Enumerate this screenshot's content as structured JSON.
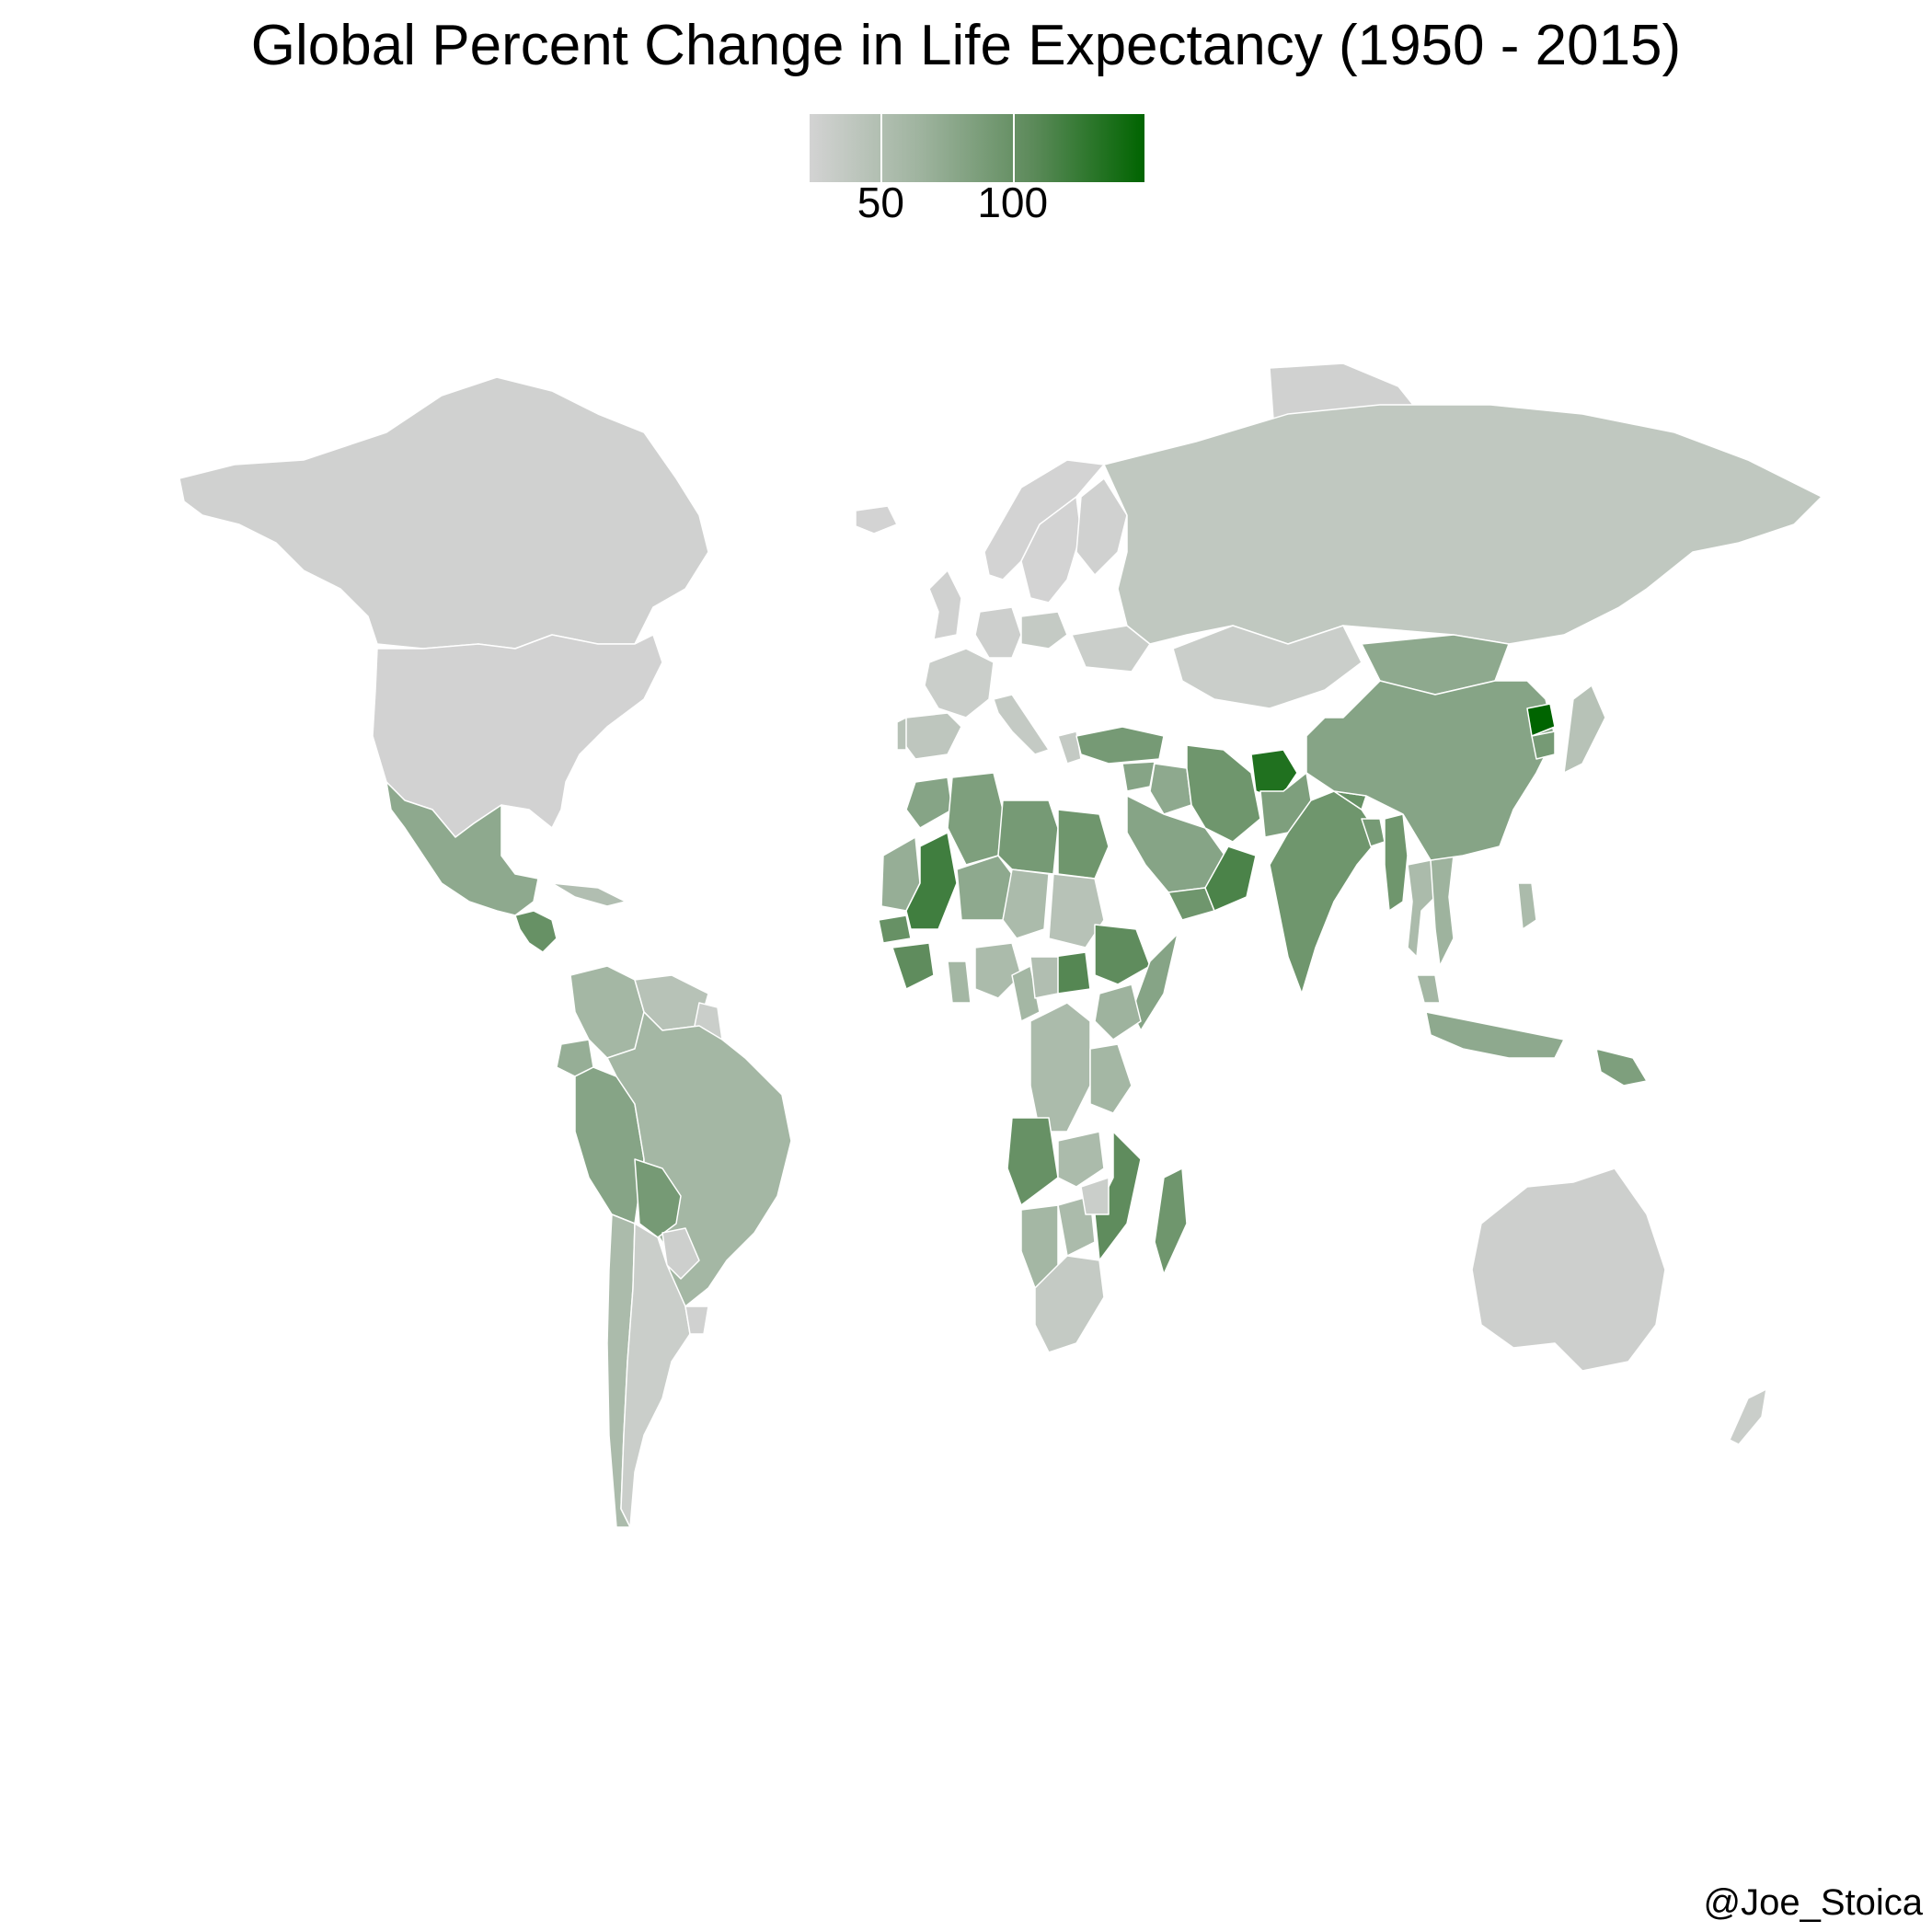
{
  "title": "Global Percent Change in Life Expectancy (1950 - 2015)",
  "legend": {
    "ticks": [
      {
        "label": "50",
        "value": 50
      },
      {
        "label": "100",
        "value": 100
      }
    ],
    "range": [
      23,
      150
    ],
    "low_color": "#d3d3d3",
    "high_color": "#006400",
    "border_color": "#ffffff"
  },
  "credit": "@Joe_Stoica",
  "chart_data": {
    "type": "choropleth",
    "title": "Global Percent Change in Life Expectancy (1950 - 2015)",
    "fill_scale": {
      "min": 23,
      "max": 150,
      "breaks": [
        50,
        100
      ]
    },
    "regions": [
      {
        "name": "Canada",
        "value": 25
      },
      {
        "name": "United States",
        "value": 24
      },
      {
        "name": "Mexico",
        "value": 75
      },
      {
        "name": "Guatemala",
        "value": 100
      },
      {
        "name": "Cuba",
        "value": 50
      },
      {
        "name": "Colombia",
        "value": 60
      },
      {
        "name": "Venezuela",
        "value": 45
      },
      {
        "name": "Guyana",
        "value": 30
      },
      {
        "name": "Ecuador",
        "value": 70
      },
      {
        "name": "Peru",
        "value": 80
      },
      {
        "name": "Brazil",
        "value": 60
      },
      {
        "name": "Bolivia",
        "value": 90
      },
      {
        "name": "Paraguay",
        "value": 28
      },
      {
        "name": "Uruguay",
        "value": 25
      },
      {
        "name": "Chile",
        "value": 55
      },
      {
        "name": "Argentina",
        "value": 30
      },
      {
        "name": "Greenland",
        "value": 25
      },
      {
        "name": "Iceland",
        "value": 23
      },
      {
        "name": "Norway",
        "value": 23
      },
      {
        "name": "Sweden",
        "value": 23
      },
      {
        "name": "Finland",
        "value": 25
      },
      {
        "name": "United Kingdom",
        "value": 25
      },
      {
        "name": "France",
        "value": 30
      },
      {
        "name": "Spain",
        "value": 40
      },
      {
        "name": "Portugal",
        "value": 45
      },
      {
        "name": "Germany",
        "value": 28
      },
      {
        "name": "Poland",
        "value": 35
      },
      {
        "name": "Italy",
        "value": 35
      },
      {
        "name": "Greece",
        "value": 35
      },
      {
        "name": "Ukraine",
        "value": 30
      },
      {
        "name": "Russia",
        "value": 38
      },
      {
        "name": "Kazakhstan",
        "value": 30
      },
      {
        "name": "Mongolia",
        "value": 75
      },
      {
        "name": "Turkey",
        "value": 90
      },
      {
        "name": "Syria",
        "value": 80
      },
      {
        "name": "Iraq",
        "value": 75
      },
      {
        "name": "Saudi Arabia",
        "value": 80
      },
      {
        "name": "Yemen",
        "value": 95
      },
      {
        "name": "Oman",
        "value": 115
      },
      {
        "name": "Iran",
        "value": 95
      },
      {
        "name": "Afghanistan",
        "value": 135
      },
      {
        "name": "Pakistan",
        "value": 85
      },
      {
        "name": "India",
        "value": 95
      },
      {
        "name": "Nepal",
        "value": 100
      },
      {
        "name": "Bangladesh",
        "value": 90
      },
      {
        "name": "Myanmar",
        "value": 95
      },
      {
        "name": "Thailand",
        "value": 55
      },
      {
        "name": "Vietnam",
        "value": 65
      },
      {
        "name": "China",
        "value": 80
      },
      {
        "name": "North Korea",
        "value": 150
      },
      {
        "name": "South Korea",
        "value": 90
      },
      {
        "name": "Japan",
        "value": 45
      },
      {
        "name": "Philippines",
        "value": 55
      },
      {
        "name": "Malaysia",
        "value": 60
      },
      {
        "name": "Indonesia",
        "value": 75
      },
      {
        "name": "Papua New Guinea",
        "value": 85
      },
      {
        "name": "Australia",
        "value": 28
      },
      {
        "name": "New Zealand",
        "value": 30
      },
      {
        "name": "Morocco",
        "value": 80
      },
      {
        "name": "Algeria",
        "value": 85
      },
      {
        "name": "Libya",
        "value": 90
      },
      {
        "name": "Egypt",
        "value": 95
      },
      {
        "name": "Mauritania",
        "value": 70
      },
      {
        "name": "Mali",
        "value": 120
      },
      {
        "name": "Niger",
        "value": 75
      },
      {
        "name": "Chad",
        "value": 55
      },
      {
        "name": "Sudan",
        "value": 45
      },
      {
        "name": "South Sudan",
        "value": 110
      },
      {
        "name": "Ethiopia",
        "value": 105
      },
      {
        "name": "Somalia",
        "value": 80
      },
      {
        "name": "Nigeria",
        "value": 55
      },
      {
        "name": "Senegal",
        "value": 100
      },
      {
        "name": "Guinea",
        "value": 105
      },
      {
        "name": "Ghana",
        "value": 60
      },
      {
        "name": "Cameroon",
        "value": 60
      },
      {
        "name": "Central African Republic",
        "value": 50
      },
      {
        "name": "DR Congo",
        "value": 55
      },
      {
        "name": "Kenya",
        "value": 65
      },
      {
        "name": "Tanzania",
        "value": 60
      },
      {
        "name": "Angola",
        "value": 100
      },
      {
        "name": "Zambia",
        "value": 55
      },
      {
        "name": "Mozambique",
        "value": 105
      },
      {
        "name": "Madagascar",
        "value": 95
      },
      {
        "name": "Namibia",
        "value": 60
      },
      {
        "name": "Botswana",
        "value": 55
      },
      {
        "name": "Zimbabwe",
        "value": 30
      },
      {
        "name": "South Africa",
        "value": 35
      }
    ]
  }
}
